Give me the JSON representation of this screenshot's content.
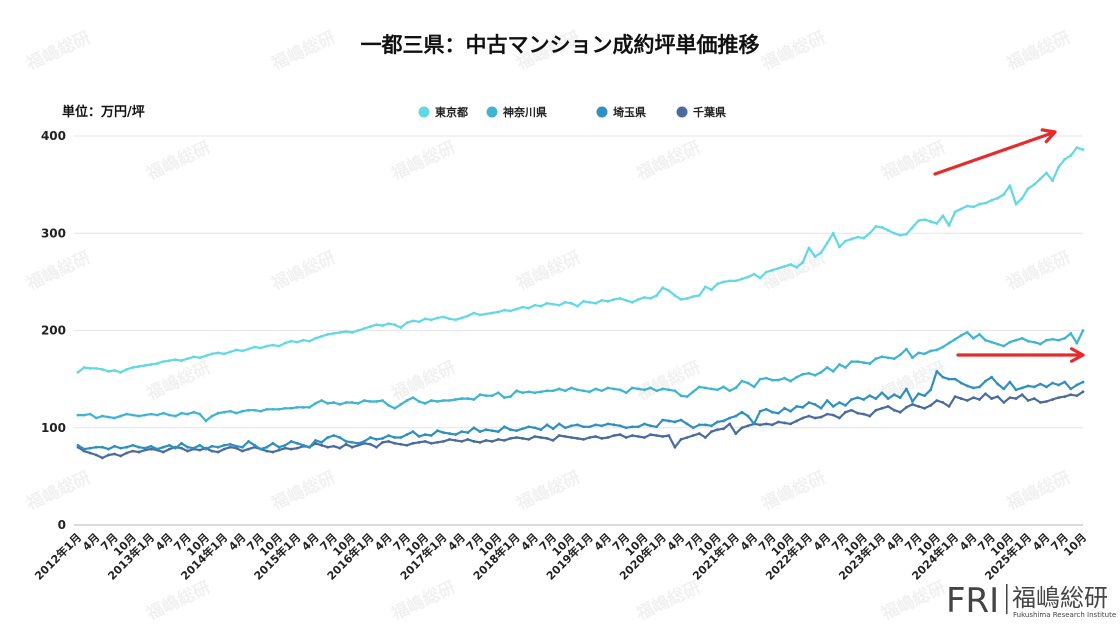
{
  "chart_data": {
    "type": "line",
    "title": "一都三県：中古マンション成約坪単価推移",
    "ylabel": "単位：万円/坪",
    "xlabel": "",
    "ylim": [
      0,
      400
    ],
    "yticks": [
      0,
      100,
      200,
      300,
      400
    ],
    "grid": true,
    "legend_position": "top-center",
    "x_start": "2012年1月",
    "x_end": "2025年10月",
    "x_tick_labels": [
      "2012年1月",
      "4月",
      "7月",
      "10月",
      "2013年1月",
      "4月",
      "7月",
      "10月",
      "2014年1月",
      "4月",
      "7月",
      "10月",
      "2015年1月",
      "4月",
      "7月",
      "10月",
      "2016年1月",
      "4月",
      "7月",
      "10月",
      "2017年1月",
      "4月",
      "7月",
      "10月",
      "2018年1月",
      "4月",
      "7月",
      "10月",
      "2019年1月",
      "4月",
      "7月",
      "10月",
      "2020年1月",
      "4月",
      "7月",
      "10月",
      "2021年1月",
      "4月",
      "7月",
      "10月",
      "2022年1月",
      "4月",
      "7月",
      "10月",
      "2023年1月",
      "4月",
      "7月",
      "10月",
      "2024年1月",
      "4月",
      "7月",
      "10月",
      "2025年1月",
      "4月",
      "7月",
      "10月"
    ],
    "series": [
      {
        "name": "東京都",
        "color": "#62d9e2",
        "values": [
          157,
          162,
          161,
          161,
          160,
          158,
          159,
          157,
          160,
          162,
          163,
          164,
          165,
          166,
          168,
          169,
          170,
          169,
          171,
          173,
          172,
          174,
          176,
          177,
          176,
          178,
          180,
          179,
          181,
          183,
          182,
          184,
          185,
          184,
          187,
          189,
          188,
          190,
          189,
          192,
          194,
          196,
          197,
          198,
          199,
          198,
          200,
          202,
          204,
          206,
          205,
          207,
          206,
          203,
          208,
          210,
          209,
          212,
          211,
          213,
          214,
          212,
          211,
          213,
          215,
          218,
          216,
          217,
          218,
          219,
          221,
          220,
          222,
          224,
          223,
          226,
          225,
          228,
          227,
          226,
          229,
          228,
          225,
          230,
          229,
          228,
          231,
          230,
          232,
          233,
          231,
          229,
          232,
          234,
          233,
          236,
          244,
          241,
          236,
          232,
          233,
          235,
          236,
          245,
          242,
          248,
          250,
          251,
          251,
          253,
          255,
          258,
          254,
          260,
          262,
          264,
          266,
          268,
          265,
          270,
          285,
          276,
          280,
          290,
          300,
          286,
          292,
          294,
          296,
          295,
          300,
          307,
          306,
          303,
          300,
          298,
          299,
          306,
          313,
          314,
          312,
          310,
          318,
          308,
          322,
          325,
          328,
          327,
          330,
          331,
          334,
          336,
          340,
          349,
          330,
          336,
          346,
          350,
          356,
          362,
          354,
          368,
          376,
          380,
          388,
          386
        ]
      },
      {
        "name": "神奈川県",
        "color": "#3fb4d2",
        "values": [
          113,
          113,
          114,
          110,
          112,
          111,
          110,
          112,
          114,
          113,
          112,
          113,
          114,
          113,
          115,
          113,
          112,
          115,
          114,
          116,
          114,
          107,
          112,
          115,
          116,
          117,
          115,
          117,
          118,
          118,
          117,
          119,
          119,
          119,
          120,
          120,
          121,
          121,
          121,
          125,
          128,
          125,
          126,
          124,
          126,
          126,
          125,
          128,
          127,
          127,
          128,
          123,
          120,
          124,
          128,
          131,
          127,
          125,
          128,
          127,
          128,
          128,
          129,
          130,
          130,
          129,
          134,
          133,
          133,
          136,
          131,
          132,
          138,
          136,
          137,
          136,
          137,
          138,
          138,
          140,
          138,
          141,
          139,
          138,
          137,
          140,
          138,
          141,
          140,
          139,
          136,
          141,
          140,
          139,
          141,
          138,
          140,
          139,
          138,
          133,
          132,
          137,
          142,
          141,
          140,
          139,
          142,
          138,
          141,
          148,
          146,
          142,
          150,
          151,
          149,
          149,
          151,
          148,
          152,
          155,
          156,
          154,
          157,
          162,
          158,
          165,
          162,
          168,
          168,
          167,
          166,
          171,
          173,
          172,
          171,
          175,
          181,
          172,
          177,
          176,
          179,
          180,
          183,
          187,
          191,
          195,
          198,
          192,
          196,
          190,
          188,
          186,
          184,
          188,
          190,
          192,
          189,
          188,
          186,
          190,
          191,
          190,
          192,
          197,
          187,
          200
        ]
      },
      {
        "name": "埼玉県",
        "color": "#2f8fc1",
        "values": [
          82,
          78,
          79,
          80,
          80,
          78,
          81,
          79,
          80,
          82,
          80,
          79,
          81,
          78,
          80,
          82,
          79,
          84,
          80,
          79,
          82,
          78,
          81,
          80,
          82,
          83,
          81,
          80,
          86,
          82,
          78,
          80,
          84,
          80,
          82,
          86,
          84,
          82,
          80,
          87,
          85,
          90,
          92,
          90,
          86,
          85,
          84,
          86,
          90,
          88,
          89,
          92,
          90,
          90,
          93,
          96,
          91,
          93,
          92,
          97,
          95,
          94,
          93,
          96,
          95,
          100,
          96,
          98,
          97,
          96,
          101,
          98,
          97,
          99,
          101,
          100,
          98,
          103,
          99,
          104,
          100,
          102,
          103,
          101,
          101,
          103,
          102,
          104,
          103,
          102,
          100,
          101,
          101,
          104,
          102,
          101,
          108,
          107,
          106,
          108,
          104,
          100,
          103,
          103,
          102,
          106,
          107,
          110,
          112,
          116,
          112,
          104,
          117,
          119,
          116,
          115,
          120,
          117,
          122,
          121,
          126,
          124,
          120,
          128,
          122,
          126,
          123,
          129,
          131,
          129,
          133,
          130,
          136,
          130,
          134,
          131,
          140,
          127,
          135,
          133,
          139,
          158,
          152,
          150,
          150,
          146,
          143,
          141,
          142,
          148,
          152,
          145,
          140,
          147,
          139,
          141,
          143,
          142,
          145,
          142,
          146,
          144,
          147,
          140,
          144,
          147
        ]
      },
      {
        "name": "千葉県",
        "color": "#4b6b9f",
        "values": [
          80,
          76,
          74,
          72,
          69,
          72,
          73,
          71,
          74,
          76,
          75,
          77,
          78,
          77,
          75,
          78,
          80,
          79,
          76,
          78,
          77,
          79,
          76,
          75,
          78,
          80,
          79,
          76,
          78,
          80,
          78,
          76,
          75,
          77,
          79,
          78,
          79,
          81,
          80,
          84,
          82,
          80,
          81,
          79,
          83,
          80,
          82,
          84,
          83,
          80,
          85,
          86,
          84,
          83,
          82,
          84,
          85,
          86,
          84,
          85,
          86,
          88,
          87,
          86,
          88,
          86,
          85,
          87,
          86,
          88,
          87,
          89,
          90,
          89,
          88,
          91,
          90,
          89,
          87,
          92,
          91,
          90,
          89,
          88,
          90,
          91,
          89,
          90,
          92,
          93,
          90,
          92,
          91,
          90,
          93,
          92,
          91,
          92,
          80,
          88,
          90,
          92,
          94,
          90,
          96,
          98,
          99,
          104,
          94,
          100,
          102,
          104,
          103,
          104,
          103,
          106,
          105,
          104,
          107,
          110,
          112,
          110,
          111,
          114,
          113,
          110,
          116,
          118,
          115,
          114,
          112,
          118,
          120,
          122,
          118,
          116,
          121,
          124,
          122,
          120,
          123,
          128,
          126,
          122,
          132,
          130,
          128,
          131,
          129,
          135,
          130,
          132,
          126,
          131,
          130,
          134,
          128,
          130,
          126,
          127,
          129,
          131,
          132,
          134,
          133,
          137
        ]
      }
    ],
    "annotations": [
      {
        "type": "arrow",
        "color": "#e52b2b",
        "meaning": "東京都 upward trend"
      },
      {
        "type": "arrow",
        "color": "#e52b2b",
        "meaning": "神奈川県・埼玉県・千葉県 flat trend"
      }
    ]
  },
  "watermark": "福嶋総研",
  "logo": {
    "mark": "FRI",
    "name": "福嶋総研",
    "subtitle": "Fukushima Research Institute"
  }
}
